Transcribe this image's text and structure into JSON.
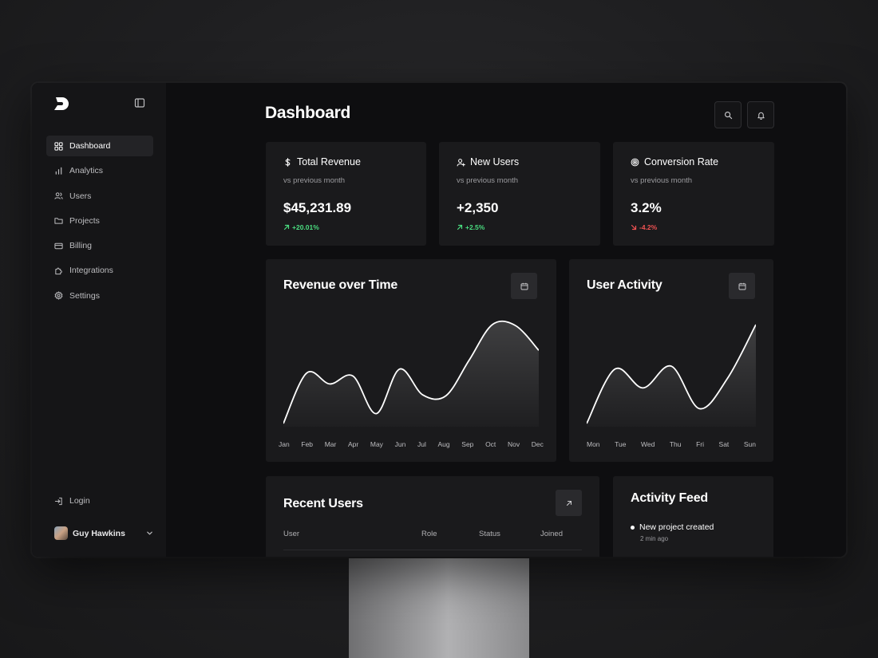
{
  "sidebar": {
    "items": [
      {
        "label": "Dashboard",
        "icon": "dashboard-icon",
        "active": true
      },
      {
        "label": "Analytics",
        "icon": "bar-chart-icon"
      },
      {
        "label": "Users",
        "icon": "users-icon"
      },
      {
        "label": "Projects",
        "icon": "folder-icon"
      },
      {
        "label": "Billing",
        "icon": "credit-card-icon"
      },
      {
        "label": "Integrations",
        "icon": "puzzle-icon"
      },
      {
        "label": "Settings",
        "icon": "gear-icon"
      }
    ],
    "login_label": "Login",
    "user_name": "Guy Hawkins"
  },
  "header": {
    "title": "Dashboard"
  },
  "stats": [
    {
      "title": "Total Revenue",
      "icon": "dollar-icon",
      "sub": "vs previous month",
      "value": "$45,231.89",
      "delta": "+20.01%",
      "direction": "up"
    },
    {
      "title": "New Users",
      "icon": "user-plus-icon",
      "sub": "vs previous month",
      "value": "+2,350",
      "delta": "+2.5%",
      "direction": "up"
    },
    {
      "title": "Conversion Rate",
      "icon": "target-icon",
      "sub": "vs previous month",
      "value": "3.2%",
      "delta": "-4.2%",
      "direction": "down"
    }
  ],
  "colors": {
    "up": "#4ade80",
    "down": "#f05252",
    "background": "#0e0e10",
    "card": "#1a1a1c"
  },
  "chart_data": [
    {
      "type": "area",
      "title": "Revenue over Time",
      "categories": [
        "Jan",
        "Feb",
        "Mar",
        "Apr",
        "May",
        "Jun",
        "Jul",
        "Aug",
        "Sep",
        "Oct",
        "Nov",
        "Dec"
      ],
      "values": [
        0.0,
        0.51,
        0.4,
        0.48,
        0.1,
        0.55,
        0.29,
        0.28,
        0.64,
        1.0,
        0.99,
        0.74
      ],
      "ylim": [
        0,
        1
      ],
      "grid": false
    },
    {
      "type": "area",
      "title": "User Activity",
      "categories": [
        "Mon",
        "Tue",
        "Wed",
        "Thu",
        "Fri",
        "Sat",
        "Sun"
      ],
      "values": [
        0.0,
        0.55,
        0.36,
        0.58,
        0.15,
        0.46,
        1.0
      ],
      "ylim": [
        0,
        1
      ],
      "grid": false
    }
  ],
  "recent_users": {
    "title": "Recent Users",
    "columns": [
      "User",
      "Role",
      "Status",
      "Joined"
    ]
  },
  "activity_feed": {
    "title": "Activity Feed",
    "items": [
      {
        "text": "New project created",
        "time": "2 min ago"
      }
    ]
  }
}
